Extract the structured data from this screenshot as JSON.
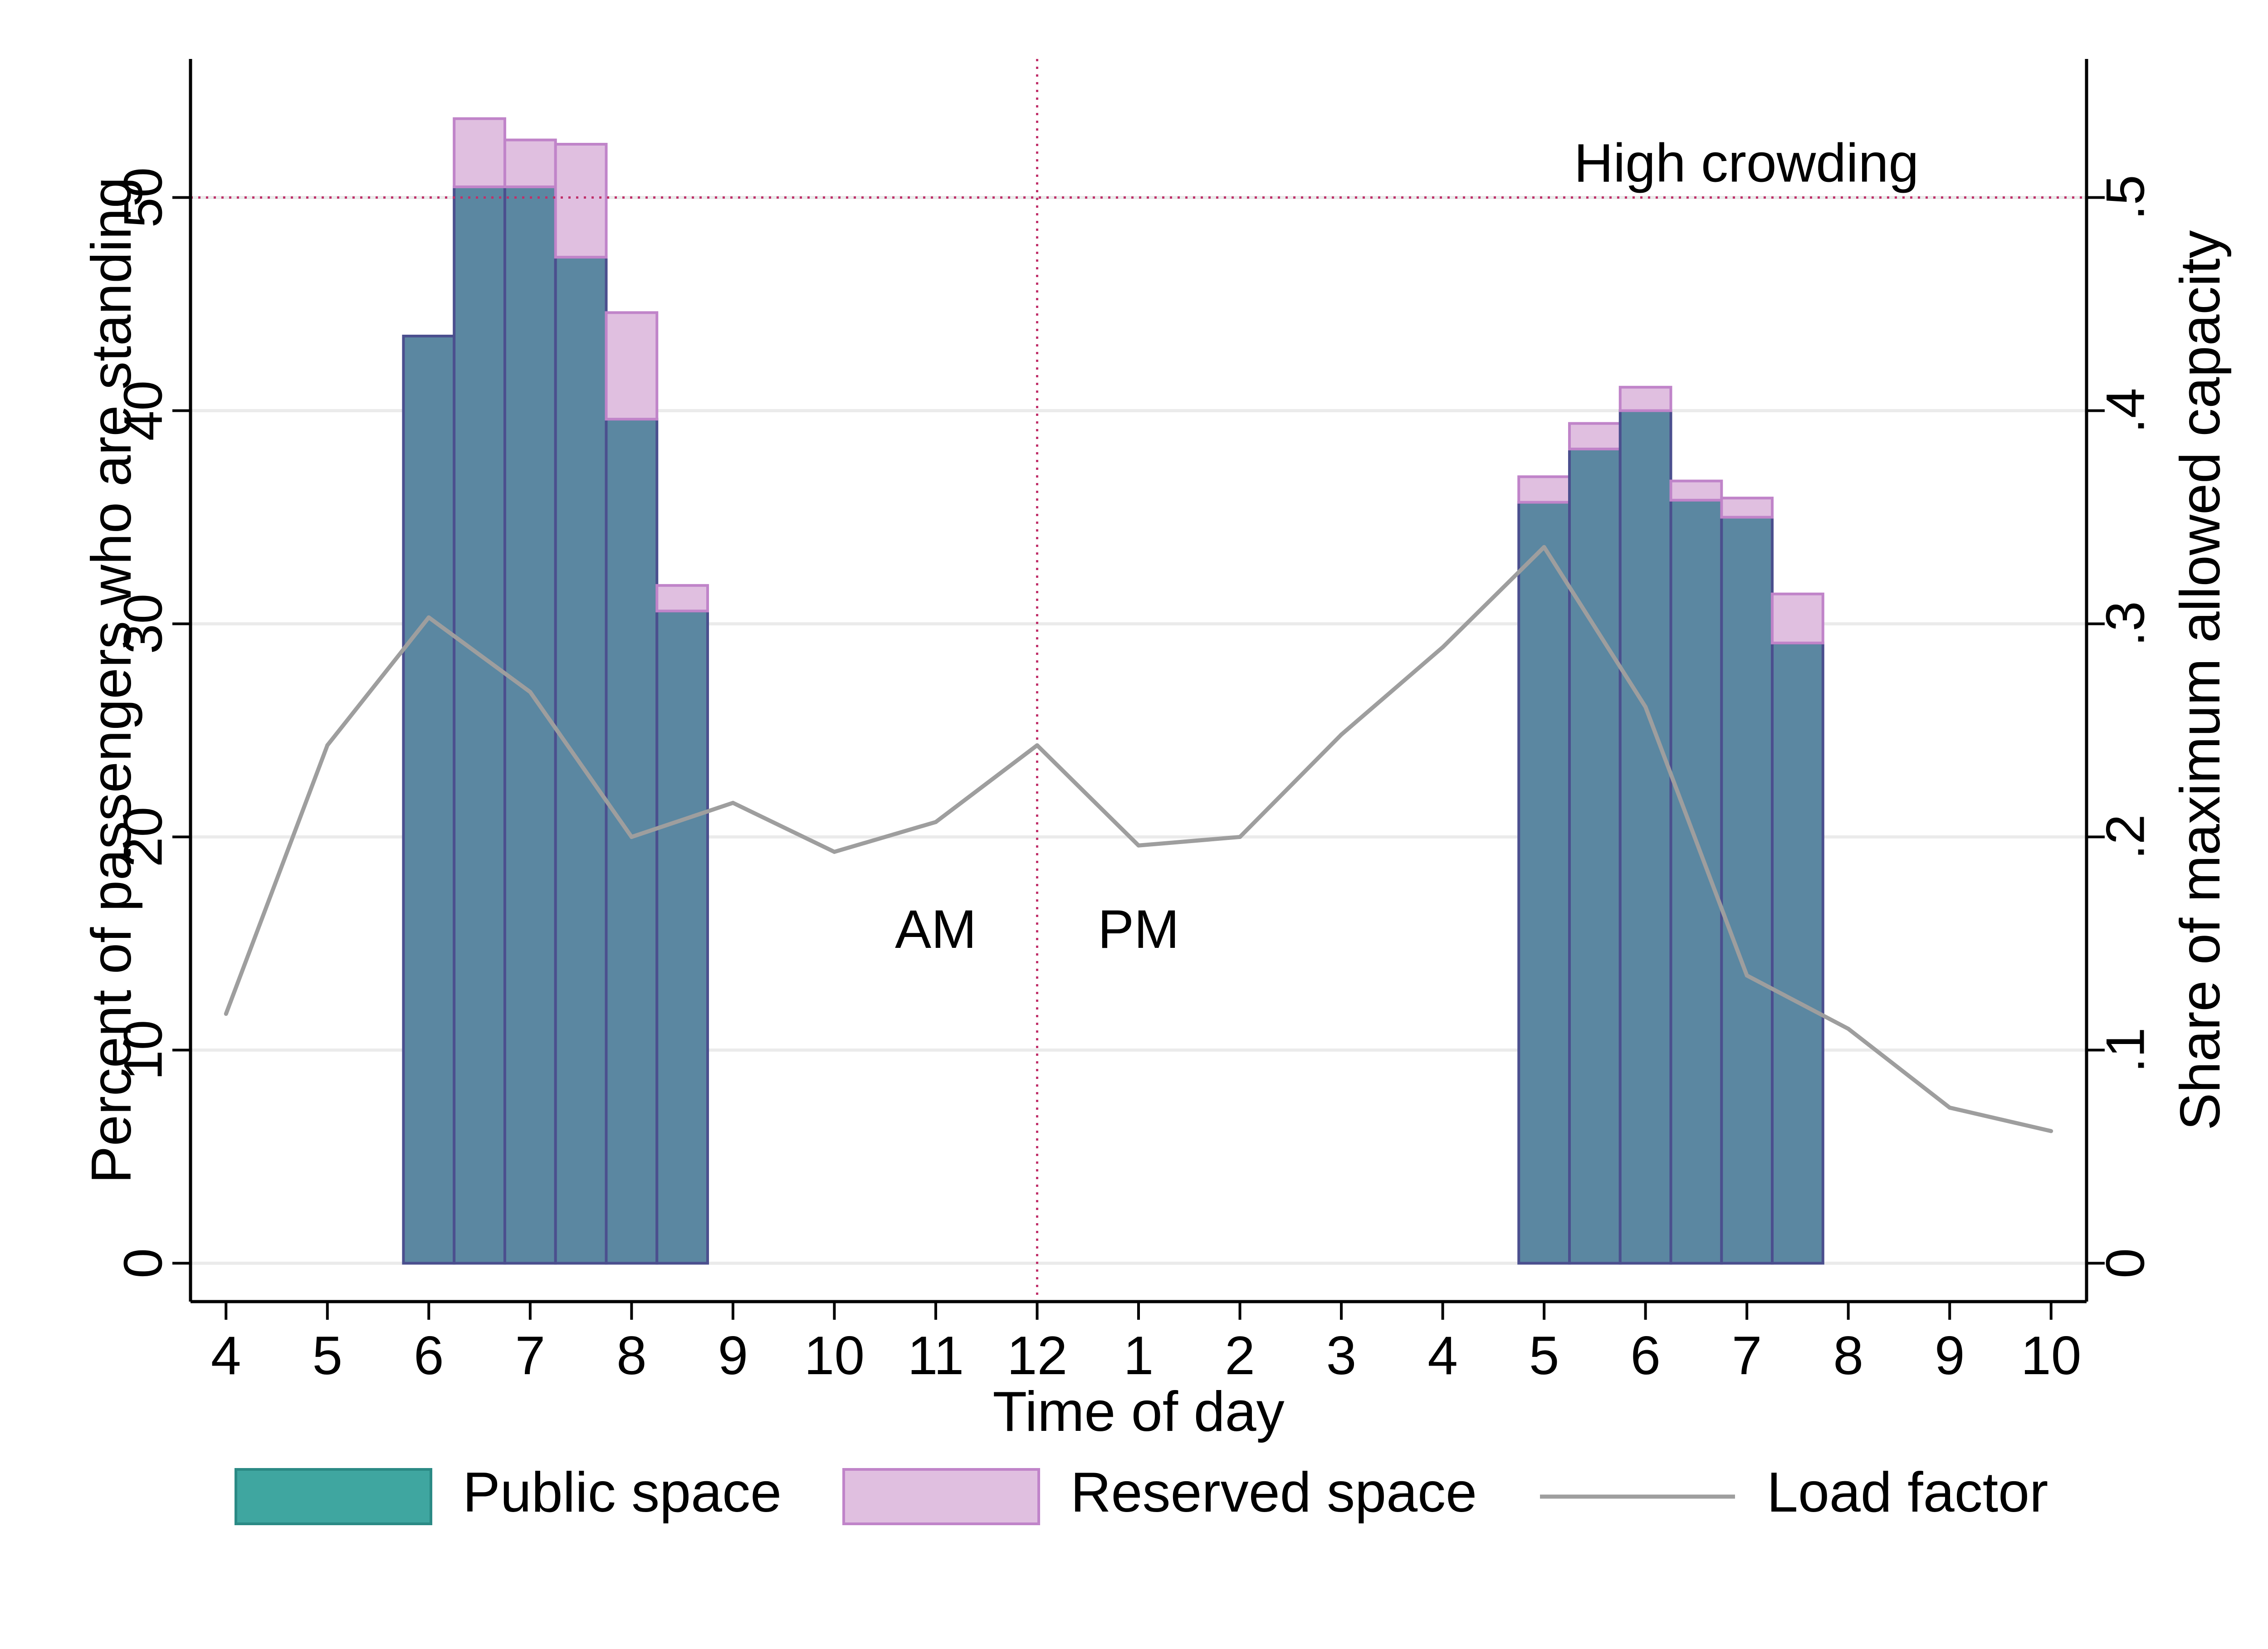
{
  "chart_data": {
    "type": "bar",
    "xlabel": "Time of day",
    "ylabel_left": "Percent of passengers who are standing",
    "ylabel_right": "Share of maximum allowed capacity",
    "x_tick_labels": [
      "4",
      "5",
      "6",
      "7",
      "8",
      "9",
      "10",
      "11",
      "12",
      "1",
      "2",
      "3",
      "4",
      "5",
      "6",
      "7",
      "8",
      "9",
      "10"
    ],
    "y_left_ticks": [
      "0",
      "10",
      "20",
      "30",
      "40",
      "50"
    ],
    "y_left_tick_values": [
      0,
      10,
      20,
      30,
      40,
      50
    ],
    "y_right_ticks": [
      "0",
      ".1",
      ".2",
      ".3",
      ".4",
      ".5"
    ],
    "y_right_tick_values": [
      0,
      0.1,
      0.2,
      0.3,
      0.4,
      0.5
    ],
    "ylim_left": [
      -1.8,
      56.5
    ],
    "ylim_right": [
      -0.018,
      0.565
    ],
    "grid": true,
    "colors": {
      "public": "#5b87a1",
      "public_edge": "#4b4f8e",
      "reserved": "#e0bfe0",
      "reserved_edge": "#c084c9",
      "load": "#9e9e9e",
      "reference": "#c0306a",
      "legend_public": "#3fa6a0",
      "legend_public_edge": "#2b8a85"
    },
    "bars": [
      {
        "x": 6.0,
        "public": 43.5,
        "reserved": 0
      },
      {
        "x": 6.5,
        "public": 50.5,
        "reserved": 3.2
      },
      {
        "x": 7.0,
        "public": 50.5,
        "reserved": 2.2
      },
      {
        "x": 7.5,
        "public": 47.2,
        "reserved": 5.3
      },
      {
        "x": 8.0,
        "public": 39.6,
        "reserved": 5.0
      },
      {
        "x": 8.5,
        "public": 30.6,
        "reserved": 1.2
      },
      {
        "x": 17.0,
        "public": 35.7,
        "reserved": 1.2
      },
      {
        "x": 17.5,
        "public": 38.2,
        "reserved": 1.2
      },
      {
        "x": 18.0,
        "public": 40.0,
        "reserved": 1.1
      },
      {
        "x": 18.5,
        "public": 35.8,
        "reserved": 0.9
      },
      {
        "x": 19.0,
        "public": 35.0,
        "reserved": 0.9
      },
      {
        "x": 19.5,
        "public": 29.1,
        "reserved": 2.3
      }
    ],
    "series": [
      {
        "name": "Public space",
        "kind": "bar",
        "values": [
          43.5,
          50.5,
          50.5,
          47.2,
          39.6,
          30.6,
          35.7,
          38.2,
          40.0,
          35.8,
          35.0,
          29.1
        ]
      },
      {
        "name": "Reserved space",
        "kind": "bar-stacked",
        "values": [
          0,
          3.2,
          2.2,
          5.3,
          5.0,
          1.2,
          1.2,
          1.2,
          1.1,
          0.9,
          0.9,
          2.3
        ]
      },
      {
        "name": "Load factor",
        "kind": "line",
        "axis": "right",
        "x": [
          4,
          5,
          6,
          7,
          8,
          9,
          10,
          11,
          12,
          13,
          14,
          15,
          16,
          17,
          18,
          19,
          20,
          21,
          22
        ],
        "values": [
          0.117,
          0.243,
          0.303,
          0.268,
          0.2,
          0.216,
          0.193,
          0.207,
          0.243,
          0.196,
          0.2,
          0.248,
          0.289,
          0.336,
          0.261,
          0.135,
          0.11,
          0.073,
          0.062
        ]
      }
    ],
    "reference_lines": [
      {
        "orientation": "horizontal",
        "axis": "left",
        "value": 50,
        "label": "High crowding"
      },
      {
        "orientation": "vertical",
        "value": 12
      }
    ],
    "annotations": [
      "AM",
      "PM"
    ],
    "legend": {
      "position": "bottom",
      "items": [
        "Public space",
        "Reserved space",
        "Load factor"
      ]
    }
  }
}
